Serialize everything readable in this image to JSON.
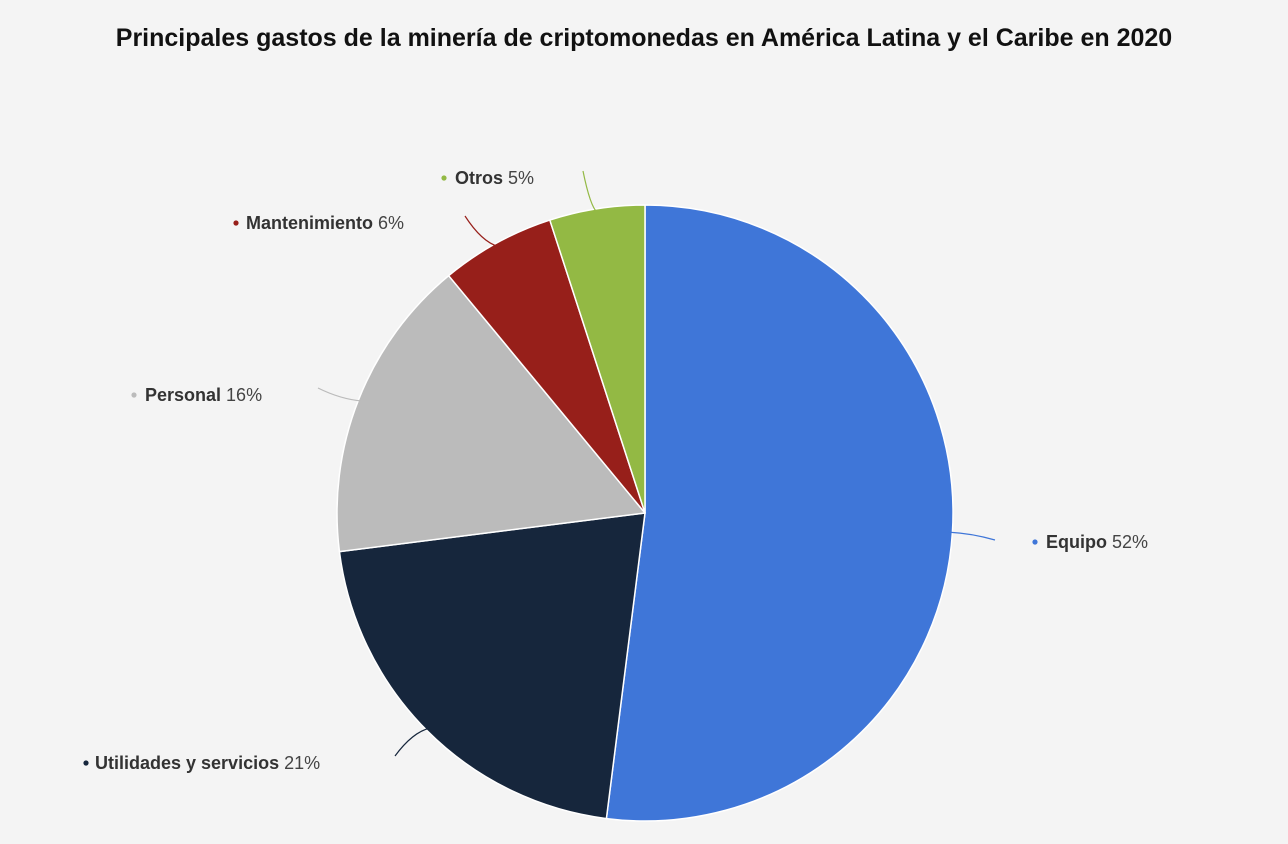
{
  "chart_data": {
    "type": "pie",
    "title": "Principales gastos de la minería de criptomonedas en América Latina y el Caribe en 2020",
    "unit": "%",
    "slices": [
      {
        "label": "Equipo",
        "value": 52,
        "display": "52%",
        "color": "#3f76d8"
      },
      {
        "label": "Utilidades y servicios",
        "value": 21,
        "display": "21%",
        "color": "#16263c"
      },
      {
        "label": "Personal",
        "value": 16,
        "display": "16%",
        "color": "#bbbbbb"
      },
      {
        "label": "Mantenimiento",
        "value": 6,
        "display": "6%",
        "color": "#971f1a"
      },
      {
        "label": "Otros",
        "value": 5,
        "display": "5%",
        "color": "#93b944"
      }
    ],
    "start_position": "top",
    "direction": "clockwise",
    "background": "#f4f4f4"
  }
}
